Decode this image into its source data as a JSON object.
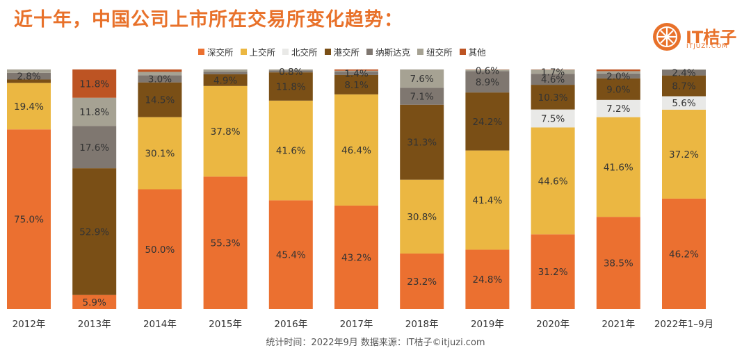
{
  "title": "近十年，中国公司上市所在交易所变化趋势：",
  "logo": {
    "name": "IT桔子",
    "url": "ITJUZI.COM"
  },
  "source": "统计时间：2022年9月  数据来源：IT桔子©itjuzi.com",
  "colors": {
    "深交所": "#eb7030",
    "上交所": "#ebb742",
    "北交所": "#e9e9e7",
    "港交所": "#7a4f16",
    "纳斯达克": "#7f7770",
    "纽交所": "#a6a293",
    "其他": "#bd5423"
  },
  "chart_data": {
    "type": "bar",
    "stacked": true,
    "categories": [
      "2012年",
      "2013年",
      "2014年",
      "2015年",
      "2016年",
      "2017年",
      "2018年",
      "2019年",
      "2020年",
      "2021年",
      "2022年1–9月"
    ],
    "series": [
      {
        "name": "深交所",
        "values": [
          75.0,
          5.9,
          50.0,
          55.3,
          45.4,
          43.2,
          23.2,
          24.8,
          31.2,
          38.5,
          46.2
        ]
      },
      {
        "name": "上交所",
        "values": [
          19.4,
          0,
          30.1,
          37.8,
          41.6,
          46.4,
          30.8,
          41.4,
          44.6,
          41.6,
          37.2
        ]
      },
      {
        "name": "北交所",
        "values": [
          0,
          0,
          0,
          0,
          0,
          0,
          0,
          0,
          7.5,
          7.2,
          5.6
        ]
      },
      {
        "name": "港交所",
        "values": [
          1.4,
          52.9,
          14.5,
          4.9,
          11.8,
          8.1,
          31.3,
          24.2,
          10.3,
          9.0,
          8.7
        ]
      },
      {
        "name": "纳斯达克",
        "values": [
          2.8,
          17.6,
          3.0,
          1.0,
          0.8,
          1.4,
          7.1,
          8.9,
          4.6,
          2.0,
          2.4
        ]
      },
      {
        "name": "纽交所",
        "values": [
          1.4,
          11.8,
          1.4,
          1.0,
          0.4,
          0.4,
          7.6,
          0.6,
          1.7,
          1.0,
          0.1
        ]
      },
      {
        "name": "其他",
        "values": [
          0,
          11.8,
          1.0,
          0,
          0,
          0.5,
          0,
          0.1,
          0.1,
          0.7,
          0
        ]
      }
    ],
    "data_labels": [
      [
        [
          "深交所",
          "75.0%"
        ],
        [
          "上交所",
          "19.4%"
        ],
        [
          "纳斯达克",
          "2.8%"
        ]
      ],
      [
        [
          "深交所",
          "5.9%"
        ],
        [
          "港交所",
          "52.9%"
        ],
        [
          "纳斯达克",
          "17.6%"
        ],
        [
          "纽交所",
          "11.8%"
        ],
        [
          "其他",
          "11.8%"
        ]
      ],
      [
        [
          "深交所",
          "50.0%"
        ],
        [
          "上交所",
          "30.1%"
        ],
        [
          "港交所",
          "14.5%"
        ],
        [
          "纳斯达克",
          "3.0%"
        ]
      ],
      [
        [
          "深交所",
          "55.3%"
        ],
        [
          "上交所",
          "37.8%"
        ],
        [
          "港交所",
          "4.9%"
        ]
      ],
      [
        [
          "深交所",
          "45.4%"
        ],
        [
          "上交所",
          "41.6%"
        ],
        [
          "港交所",
          "11.8%"
        ],
        [
          "纳斯达克",
          "0.8%"
        ]
      ],
      [
        [
          "深交所",
          "43.2%"
        ],
        [
          "上交所",
          "46.4%"
        ],
        [
          "港交所",
          "8.1%"
        ],
        [
          "纳斯达克",
          "1.4%"
        ]
      ],
      [
        [
          "深交所",
          "23.2%"
        ],
        [
          "上交所",
          "30.8%"
        ],
        [
          "港交所",
          "31.3%"
        ],
        [
          "纳斯达克",
          "7.1%"
        ],
        [
          "纽交所",
          "7.6%"
        ]
      ],
      [
        [
          "深交所",
          "24.8%"
        ],
        [
          "上交所",
          "41.4%"
        ],
        [
          "港交所",
          "24.2%"
        ],
        [
          "纳斯达克",
          "8.9%"
        ],
        [
          "纽交所",
          "0.6%"
        ]
      ],
      [
        [
          "深交所",
          "31.2%"
        ],
        [
          "上交所",
          "44.6%"
        ],
        [
          "北交所",
          "7.5%"
        ],
        [
          "港交所",
          "10.3%"
        ],
        [
          "纳斯达克",
          "4.6%"
        ],
        [
          "纽交所",
          "1.7%"
        ]
      ],
      [
        [
          "深交所",
          "38.5%"
        ],
        [
          "上交所",
          "41.6%"
        ],
        [
          "北交所",
          "7.2%"
        ],
        [
          "港交所",
          "9.0%"
        ],
        [
          "纳斯达克",
          "2.0%"
        ]
      ],
      [
        [
          "深交所",
          "46.2%"
        ],
        [
          "上交所",
          "37.2%"
        ],
        [
          "北交所",
          "5.6%"
        ],
        [
          "港交所",
          "8.7%"
        ],
        [
          "纳斯达克",
          "2.4%"
        ]
      ]
    ],
    "ylim": [
      0,
      100
    ],
    "legend_position": "top",
    "watermark": "IT桔子 ITJUZI.COM"
  }
}
